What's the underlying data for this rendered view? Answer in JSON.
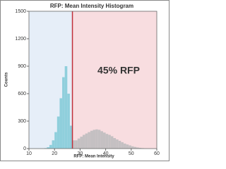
{
  "chart_data": {
    "type": "histogram",
    "title": "RFP: Mean Intensity Histogram",
    "xlabel": "RFP: Mean Intensity",
    "ylabel": "Counts",
    "annotation": "45% RFP",
    "bins": [
      15,
      16,
      17,
      18,
      19,
      20,
      21,
      22,
      23,
      24,
      25,
      26,
      27,
      28,
      29,
      30,
      31,
      32,
      33,
      34,
      35,
      36,
      37,
      38,
      39,
      40,
      41,
      42,
      43,
      44,
      45,
      46,
      47,
      48,
      49,
      50,
      51,
      52,
      53,
      54,
      55,
      56
    ],
    "counts": [
      0,
      5,
      15,
      40,
      90,
      180,
      350,
      550,
      780,
      900,
      600,
      250,
      90,
      90,
      110,
      130,
      150,
      165,
      180,
      195,
      205,
      210,
      205,
      190,
      175,
      160,
      150,
      135,
      115,
      100,
      85,
      70,
      55,
      45,
      35,
      25,
      18,
      12,
      8,
      5,
      2
    ],
    "gate": 27,
    "gate_color": "#c0303a",
    "left_region_color": "#e6eef8",
    "right_region_color": "#f8dde0",
    "left_bar_color": "#8fcfdc",
    "right_bar_color": "#c4c0c2",
    "xlim": [
      10,
      60
    ],
    "xticks": [
      10,
      20,
      30,
      40,
      50,
      60
    ],
    "ylim": [
      0,
      1500
    ],
    "yticks": [
      0,
      300,
      600,
      900,
      1200,
      1500
    ]
  }
}
